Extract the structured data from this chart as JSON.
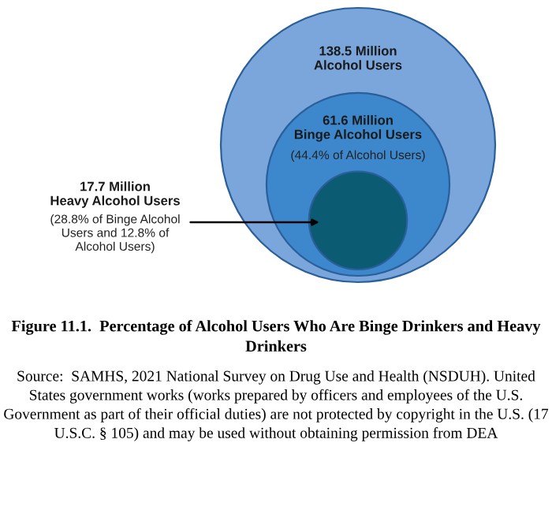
{
  "chart_data": {
    "type": "other",
    "title": "Figure 11.1.  Percentage of Alcohol Users Who Are Binge Drinkers and Heavy Drinkers",
    "categories": [
      "Alcohol Users",
      "Binge Alcohol Users",
      "Heavy Alcohol Users"
    ],
    "values": [
      138.5,
      61.6,
      17.7
    ],
    "value_labels": [
      "138.5 Million",
      "61.6 Million",
      "17.7 Million"
    ],
    "colors": [
      "#7aa6dc",
      "#3d88cc",
      "#0b5b72"
    ],
    "annotations": [
      "(44.4% of Alcohol Users)",
      "(28.8% of Binge Alcohol\nUsers and 12.8% of\nAlcohol Users)",
      "Source:  SAMHS, 2021 National Survey on Drug Use and Health (NSDUH). United States government works (works prepared by officers and employees of the U.S. Government as part of their official duties) are not protected by copyright in the U.S. (17 U.S.C. § 105) and may be used without obtaining permission from DEA"
    ]
  }
}
